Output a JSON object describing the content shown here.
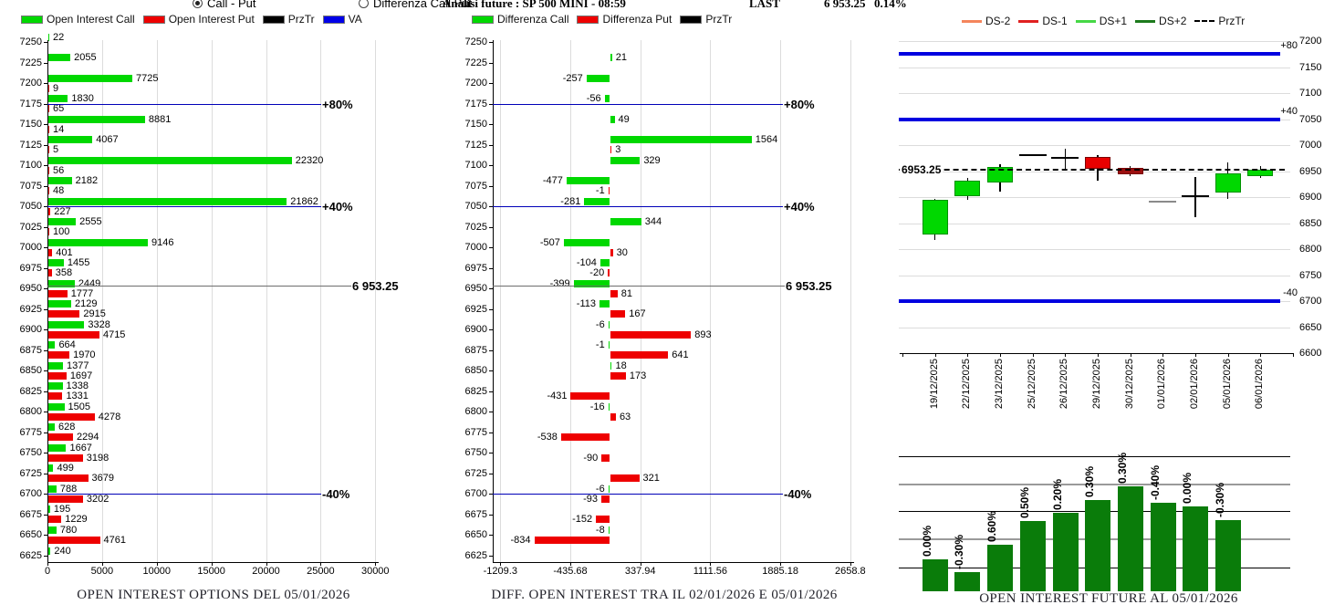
{
  "header": {
    "radio_call_put": "Call - Put",
    "radio_differenza": "Differenza Call Put",
    "title": "Analisi future : SP 500 MINI - 08:59",
    "last_label": "LAST",
    "last_value": "6 953.25",
    "last_change": "0.14%"
  },
  "legends": {
    "options": [
      {
        "label": "Open Interest Call",
        "color": "#00d800"
      },
      {
        "label": "Open Interest Put",
        "color": "#ee0000"
      },
      {
        "label": "PrzTr",
        "color": "#000000"
      },
      {
        "label": "VA",
        "color": "#0000e8"
      }
    ],
    "diff": [
      {
        "label": "Differenza Call",
        "color": "#00d800"
      },
      {
        "label": "Differenza Put",
        "color": "#ee0000"
      },
      {
        "label": "PrzTr",
        "color": "#000000"
      }
    ],
    "future": [
      {
        "label": "DS-2",
        "color": "#f4855c",
        "style": "solid"
      },
      {
        "label": "DS-1",
        "color": "#e02020",
        "style": "solid"
      },
      {
        "label": "DS+1",
        "color": "#46d846",
        "style": "solid"
      },
      {
        "label": "DS+2",
        "color": "#1d7a1d",
        "style": "solid"
      },
      {
        "label": "PrzTr",
        "color": "#000000",
        "style": "dashed"
      }
    ]
  },
  "chart_data": [
    {
      "id": "oi_options",
      "type": "bar",
      "orientation": "horizontal",
      "title": "OPEN INTEREST OPTIONS DEL 05/01/2026",
      "call_color": "#00d800",
      "put_color": "#ee0000",
      "strikes": [
        7250,
        7225,
        7200,
        7175,
        7150,
        7125,
        7100,
        7075,
        7050,
        7025,
        7000,
        6975,
        6950,
        6925,
        6900,
        6875,
        6850,
        6825,
        6800,
        6775,
        6750,
        6725,
        6700,
        6675,
        6650,
        6625
      ],
      "call_values": [
        22,
        2055,
        7725,
        1830,
        8881,
        4067,
        22320,
        2182,
        21862,
        2555,
        9146,
        1455,
        2449,
        2129,
        3328,
        664,
        1377,
        1338,
        1505,
        628,
        1667,
        499,
        788,
        195,
        780,
        240
      ],
      "put_values": [
        null,
        null,
        9,
        65,
        14,
        5,
        56,
        48,
        227,
        100,
        401,
        358,
        1777,
        2915,
        4715,
        1970,
        1697,
        1331,
        4278,
        2294,
        3198,
        3679,
        3202,
        1229,
        4761,
        null
      ],
      "x_ticks": [
        {
          "label": "0",
          "value": 0
        },
        {
          "label": "5000",
          "value": 5000
        },
        {
          "label": "10000",
          "value": 10000
        },
        {
          "label": "15000",
          "value": 15000
        },
        {
          "label": "20000",
          "value": 20000
        },
        {
          "label": "25000",
          "value": 25000
        },
        {
          "label": "30000",
          "value": 30000
        }
      ],
      "xlim": [
        0,
        30000
      ],
      "ref_lines": [
        {
          "label": "+80%",
          "value": 7175,
          "kind": "va"
        },
        {
          "label": "+40%",
          "value": 7050,
          "kind": "va"
        },
        {
          "label": "-40%",
          "value": 6700,
          "kind": "va"
        },
        {
          "label": "6 953.25",
          "value": 6953.25,
          "kind": "prztr"
        }
      ]
    },
    {
      "id": "oi_diff",
      "type": "bar",
      "orientation": "horizontal",
      "title": "DIFF. OPEN INTEREST TRA IL 02/01/2026 E 05/01/2026",
      "call_color": "#00d800",
      "put_color": "#ee0000",
      "strikes": [
        7250,
        7225,
        7200,
        7175,
        7150,
        7125,
        7100,
        7075,
        7050,
        7025,
        7000,
        6975,
        6950,
        6925,
        6900,
        6875,
        6850,
        6825,
        6800,
        6775,
        6750,
        6725,
        6700,
        6675,
        6650,
        6625
      ],
      "call_values": [
        null,
        21,
        -257,
        -56,
        49,
        1564,
        329,
        -477,
        -281,
        344,
        -507,
        -104,
        -399,
        -113,
        -6,
        -1,
        18,
        null,
        -16,
        null,
        null,
        null,
        -6,
        null,
        -8,
        null
      ],
      "put_values": [
        null,
        null,
        null,
        null,
        null,
        3,
        null,
        -1,
        null,
        null,
        30,
        -20,
        81,
        167,
        893,
        641,
        173,
        -431,
        63,
        -538,
        -90,
        321,
        -93,
        -152,
        -834,
        null
      ],
      "x_ticks": [
        {
          "label": "-1209.3",
          "value": -1209.3
        },
        {
          "label": "-435.68",
          "value": -435.68
        },
        {
          "label": "337.94",
          "value": 337.94
        },
        {
          "label": "1111.56",
          "value": 1111.56
        },
        {
          "label": "1885.18",
          "value": 1885.18
        },
        {
          "label": "2658.8",
          "value": 2658.8
        }
      ],
      "xlim": [
        -1209.3,
        2658.8
      ],
      "ref_lines": [
        {
          "label": "+80%",
          "value": 7175,
          "kind": "va"
        },
        {
          "label": "+40%",
          "value": 7050,
          "kind": "va"
        },
        {
          "label": "-40%",
          "value": 6700,
          "kind": "va"
        },
        {
          "label": "6 953.25",
          "value": 6953.25,
          "kind": "prztr"
        }
      ]
    },
    {
      "id": "future_candlesticks",
      "type": "candlestick",
      "y_ticks": [
        7200,
        7150,
        7100,
        7050,
        7000,
        6950,
        6900,
        6850,
        6800,
        6750,
        6700,
        6650,
        6600
      ],
      "ylim": [
        6600,
        7210
      ],
      "va_lines": [
        {
          "label": "+80",
          "value": 7175
        },
        {
          "label": "+40",
          "value": 7050
        },
        {
          "label": "-40",
          "value": 6700
        }
      ],
      "przt_line": {
        "label": "6953.25",
        "value": 6953.25
      },
      "candles": [
        {
          "date": "19/12/2025",
          "open": 6828,
          "high": 6897,
          "low": 6818,
          "close": 6895,
          "kind": "up"
        },
        {
          "date": "22/12/2025",
          "open": 6902,
          "high": 6936,
          "low": 6895,
          "close": 6931,
          "kind": "up"
        },
        {
          "date": "23/12/2025",
          "open": 6928,
          "high": 6964,
          "low": 6910,
          "close": 6958,
          "kind": "up"
        },
        {
          "date": "25/12/2025",
          "open": 6981,
          "high": 6981,
          "low": 6981,
          "close": 6981,
          "kind": "flat"
        },
        {
          "date": "26/12/2025",
          "open": 6975,
          "high": 6993,
          "low": 6955,
          "close": 6975,
          "kind": "doji"
        },
        {
          "date": "29/12/2025",
          "open": 6978,
          "high": 6980,
          "low": 6932,
          "close": 6955,
          "kind": "down"
        },
        {
          "date": "30/12/2025",
          "open": 6956,
          "high": 6959,
          "low": 6940,
          "close": 6944,
          "kind": "down-dark"
        },
        {
          "date": "01/01/2026",
          "open": 6891,
          "high": 6891,
          "low": 6891,
          "close": 6891,
          "kind": "flat-gray"
        },
        {
          "date": "02/01/2026",
          "open": 6901,
          "high": 6938,
          "low": 6862,
          "close": 6901,
          "kind": "doji"
        },
        {
          "date": "05/01/2026",
          "open": 6909,
          "high": 6966,
          "low": 6896,
          "close": 6945,
          "kind": "up"
        },
        {
          "date": "06/01/2026",
          "open": 6941,
          "high": 6959,
          "low": 6937,
          "close": 6952,
          "kind": "up"
        }
      ],
      "up_color": "#00d800",
      "down_color": "#e80000",
      "down_dark_color": "#9c0f0f"
    },
    {
      "id": "oi_future",
      "type": "bar",
      "title": "OPEN INTEREST FUTURE AL 05/01/2026",
      "bar_color": "#0a7c0a",
      "bar_labels": [
        "0.00%",
        "-0.30%",
        "0.60%",
        "0.50%",
        "0.20%",
        "0.30%",
        "0.30%",
        "-0.40%",
        "0.00%",
        "-0.30%"
      ],
      "relative_heights": [
        0.3,
        0.18,
        0.44,
        0.67,
        0.75,
        0.87,
        1.0,
        0.84,
        0.81,
        0.68
      ]
    }
  ]
}
